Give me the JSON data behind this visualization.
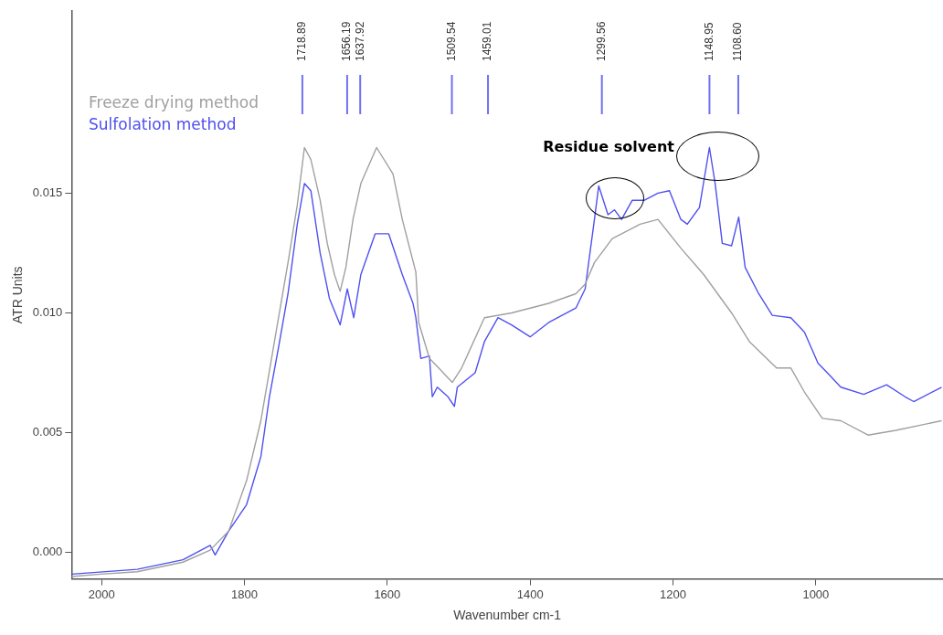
{
  "chart_data": {
    "type": "line",
    "xlabel": "Wavenumber cm-1",
    "ylabel": "ATR Units",
    "xlim": [
      2042,
      822
    ],
    "xticks": [
      2000,
      1800,
      1600,
      1400,
      1200,
      1000
    ],
    "ylim": [
      -0.0011,
      0.0226
    ],
    "yticks": [
      {
        "value": 0,
        "label": "0.000"
      },
      {
        "value": 0.005,
        "label": "0.005"
      },
      {
        "value": 0.01,
        "label": "0.010"
      },
      {
        "value": 0.015,
        "label": "0.015"
      }
    ],
    "grid": false,
    "legend": "top left",
    "marker": "none",
    "line_style": "solid",
    "series": [
      {
        "name": "Freeze drying method",
        "color": "#a0a0a0",
        "x": [
          2042,
          2001,
          1950,
          1886,
          1848,
          1822,
          1797,
          1777,
          1758,
          1739,
          1726,
          1716,
          1707,
          1694,
          1684,
          1674,
          1666,
          1658,
          1648,
          1637,
          1615,
          1592,
          1579,
          1560,
          1556,
          1541,
          1528,
          1509,
          1496,
          1464,
          1426,
          1374,
          1336,
          1323,
          1310,
          1285,
          1246,
          1221,
          1189,
          1157,
          1118,
          1093,
          1055,
          1035,
          1016,
          991,
          965,
          927,
          888,
          824
        ],
        "values": [
          -0.001,
          -0.0009,
          -0.0008,
          -0.0004,
          0.0001,
          0.0009,
          0.003,
          0.0055,
          0.0088,
          0.0121,
          0.0145,
          0.0169,
          0.0164,
          0.0147,
          0.0129,
          0.0116,
          0.0109,
          0.0119,
          0.0139,
          0.0154,
          0.0169,
          0.0158,
          0.0139,
          0.0117,
          0.0096,
          0.0081,
          0.0077,
          0.0071,
          0.0077,
          0.0098,
          0.01,
          0.0104,
          0.0108,
          0.0112,
          0.0121,
          0.0131,
          0.0137,
          0.0139,
          0.0127,
          0.0116,
          0.01,
          0.0088,
          0.0077,
          0.0077,
          0.0067,
          0.0056,
          0.0055,
          0.0049,
          0.0051,
          0.0055
        ]
      },
      {
        "name": "Sulfolation method",
        "color": "#5050f0",
        "x": [
          2042,
          1950,
          1886,
          1848,
          1841,
          1822,
          1797,
          1777,
          1765,
          1752,
          1739,
          1726,
          1716,
          1707,
          1694,
          1681,
          1666,
          1656,
          1647,
          1637,
          1617,
          1598,
          1579,
          1564,
          1560,
          1553,
          1541,
          1537,
          1530,
          1515,
          1506,
          1502,
          1477,
          1464,
          1445,
          1426,
          1400,
          1374,
          1336,
          1323,
          1310,
          1304,
          1291,
          1282,
          1272,
          1257,
          1240,
          1221,
          1205,
          1189,
          1180,
          1163,
          1149,
          1141,
          1131,
          1118,
          1108,
          1099,
          1080,
          1061,
          1035,
          1016,
          997,
          984,
          965,
          933,
          901,
          875,
          863,
          824
        ],
        "values": [
          -0.0009,
          -0.0007,
          -0.0003,
          0.0003,
          -0.0001,
          0.0009,
          0.002,
          0.004,
          0.0065,
          0.0086,
          0.0108,
          0.0137,
          0.0154,
          0.0151,
          0.0125,
          0.0106,
          0.0095,
          0.011,
          0.0098,
          0.0116,
          0.0133,
          0.0133,
          0.0116,
          0.0104,
          0.0098,
          0.0081,
          0.0082,
          0.0065,
          0.0069,
          0.0065,
          0.0061,
          0.0069,
          0.0075,
          0.0088,
          0.0098,
          0.0095,
          0.009,
          0.0096,
          0.0102,
          0.011,
          0.0139,
          0.0153,
          0.0141,
          0.0143,
          0.0139,
          0.0147,
          0.0147,
          0.015,
          0.0151,
          0.0139,
          0.0137,
          0.0144,
          0.0169,
          0.0154,
          0.0129,
          0.0128,
          0.014,
          0.0119,
          0.0108,
          0.0099,
          0.0098,
          0.0092,
          0.0079,
          0.0075,
          0.0069,
          0.0066,
          0.007,
          0.0065,
          0.0063,
          0.0069
        ]
      }
    ],
    "ref_lines": [
      {
        "axis": "x",
        "value": 1718.89,
        "label": "1718.89",
        "color": "#7070f0"
      },
      {
        "axis": "x",
        "value": 1656.19,
        "label": "1656.19",
        "color": "#7070f0"
      },
      {
        "axis": "x",
        "value": 1637.92,
        "label": "1637.92",
        "color": "#7070f0"
      },
      {
        "axis": "x",
        "value": 1509.54,
        "label": "1509.54",
        "color": "#7070f0"
      },
      {
        "axis": "x",
        "value": 1459.01,
        "label": "1459.01",
        "color": "#7070f0"
      },
      {
        "axis": "x",
        "value": 1299.56,
        "label": "1299.56",
        "color": "#7070f0"
      },
      {
        "axis": "x",
        "value": 1148.95,
        "label": "1148.95",
        "color": "#7070f0"
      },
      {
        "axis": "x",
        "value": 1108.6,
        "label": "1108.60",
        "color": "#7070f0"
      }
    ],
    "annotations": [
      "Residue solvent"
    ]
  }
}
